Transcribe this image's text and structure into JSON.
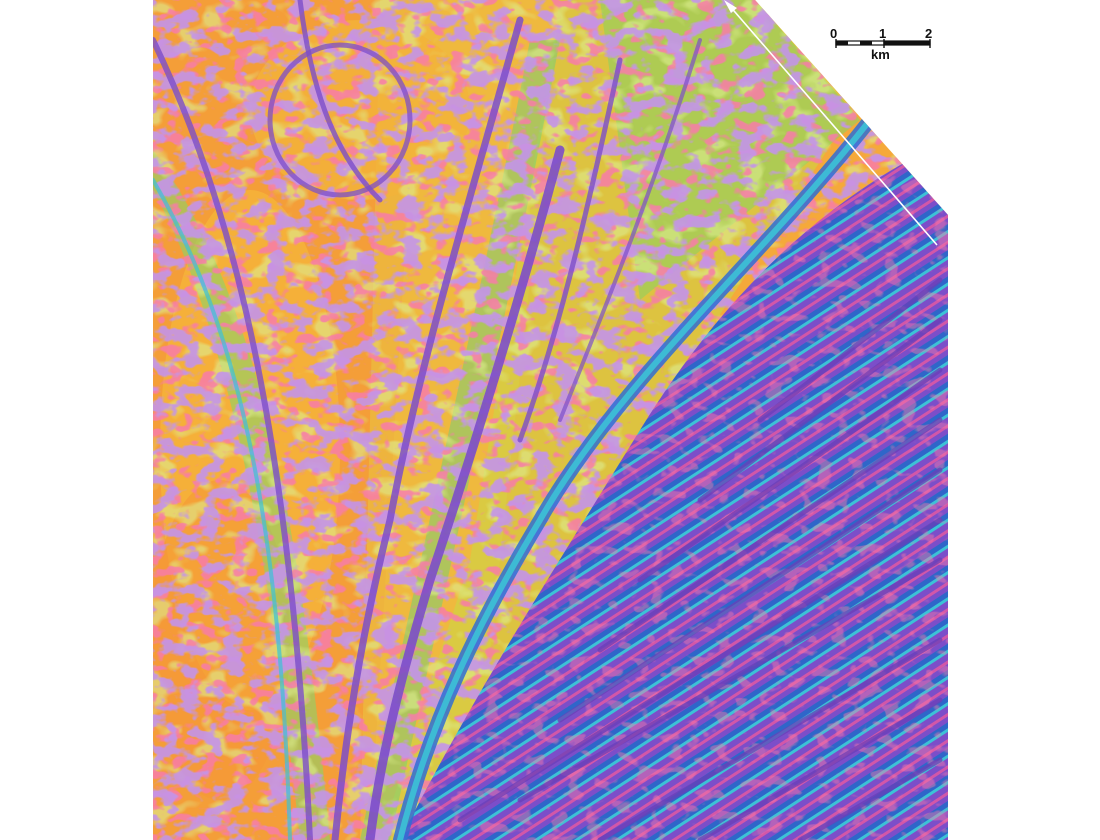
{
  "map": {
    "type": "shaded-relief magnetic anomaly map",
    "palette": [
      "#8a4fd0",
      "#b3559f",
      "#ef2f6b",
      "#f78b2f",
      "#f6d23a",
      "#b8dd45",
      "#56c06b",
      "#3cc2d6",
      "#2f6fd3"
    ],
    "annotation_line": {
      "color": "#ffffff",
      "arrowhead": "top"
    },
    "scale_bar": {
      "ticks": [
        "0",
        "1",
        "2"
      ],
      "unit": "km"
    }
  }
}
